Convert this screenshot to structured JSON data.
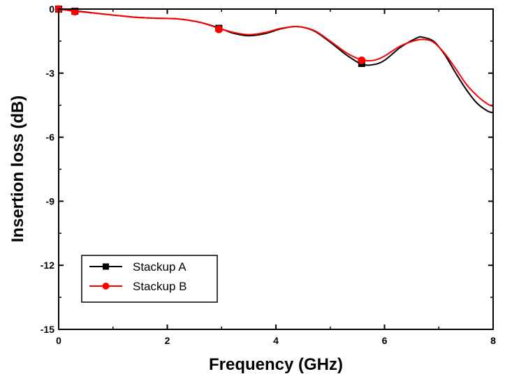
{
  "chart_data": {
    "type": "line",
    "title": "",
    "xlabel": "Frequency (GHz)",
    "ylabel": "Insertion loss (dB)",
    "xlim": [
      0,
      8
    ],
    "ylim": [
      -15,
      0
    ],
    "xticks": [
      0,
      2,
      4,
      6,
      8
    ],
    "xtick_labels": [
      "0",
      "2",
      "4",
      "6",
      "8"
    ],
    "yticks": [
      0,
      -3,
      -6,
      -9,
      -12,
      -15
    ],
    "ytick_labels": [
      "0",
      "-3",
      "-6",
      "-9",
      "-12",
      "-15"
    ],
    "grid": false,
    "legend_position": "bottom-left",
    "series": [
      {
        "name": "Stackup A",
        "color": "#000000",
        "marker": "square",
        "x": [
          0,
          0.3,
          0.7,
          1.0,
          1.4,
          1.8,
          2.2,
          2.6,
          2.95,
          3.2,
          3.5,
          3.8,
          4.1,
          4.4,
          4.7,
          5.0,
          5.3,
          5.58,
          5.8,
          6.0,
          6.3,
          6.6,
          6.7,
          6.9,
          7.1,
          7.3,
          7.5,
          7.7,
          7.9,
          8.0
        ],
        "y": [
          0,
          -0.08,
          -0.2,
          -0.28,
          -0.38,
          -0.43,
          -0.46,
          -0.62,
          -0.88,
          -1.12,
          -1.25,
          -1.15,
          -0.92,
          -0.82,
          -1.02,
          -1.55,
          -2.15,
          -2.58,
          -2.6,
          -2.4,
          -1.78,
          -1.35,
          -1.32,
          -1.5,
          -2.1,
          -2.95,
          -3.75,
          -4.4,
          -4.78,
          -4.85
        ],
        "marker_x": [
          0,
          0.3,
          2.95,
          5.58
        ],
        "marker_y": [
          0,
          -0.1,
          -0.9,
          -2.55
        ]
      },
      {
        "name": "Stackup B",
        "color": "#ff0000",
        "marker": "circle",
        "x": [
          0,
          0.3,
          0.7,
          1.0,
          1.4,
          1.8,
          2.2,
          2.6,
          2.95,
          3.2,
          3.5,
          3.8,
          4.1,
          4.4,
          4.7,
          5.0,
          5.3,
          5.58,
          5.8,
          6.0,
          6.3,
          6.6,
          6.75,
          6.9,
          7.1,
          7.3,
          7.5,
          7.7,
          7.9,
          8.0
        ],
        "y": [
          0,
          -0.1,
          -0.2,
          -0.28,
          -0.38,
          -0.43,
          -0.46,
          -0.62,
          -0.9,
          -1.08,
          -1.2,
          -1.1,
          -0.9,
          -0.82,
          -1.0,
          -1.5,
          -2.05,
          -2.38,
          -2.4,
          -2.2,
          -1.72,
          -1.45,
          -1.43,
          -1.55,
          -2.05,
          -2.75,
          -3.5,
          -4.05,
          -4.45,
          -4.55
        ],
        "marker_x": [
          0,
          0.3,
          2.95,
          5.58
        ],
        "marker_y": [
          0,
          -0.12,
          -0.95,
          -2.4
        ]
      }
    ]
  }
}
